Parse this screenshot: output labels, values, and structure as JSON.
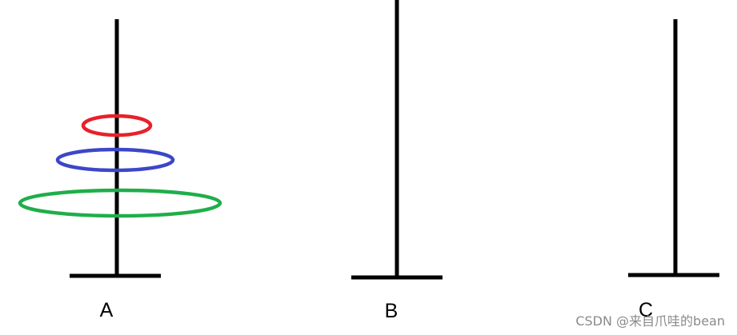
{
  "poles": [
    {
      "label": "A",
      "disks": [
        {
          "color": "#e8202a"
        },
        {
          "color": "#3c46c8"
        },
        {
          "color": "#1fae4a"
        }
      ]
    },
    {
      "label": "B",
      "disks": []
    },
    {
      "label": "C",
      "disks": []
    }
  ],
  "line_color": "#000000",
  "watermark": "CSDN @来自爪哇的bean"
}
